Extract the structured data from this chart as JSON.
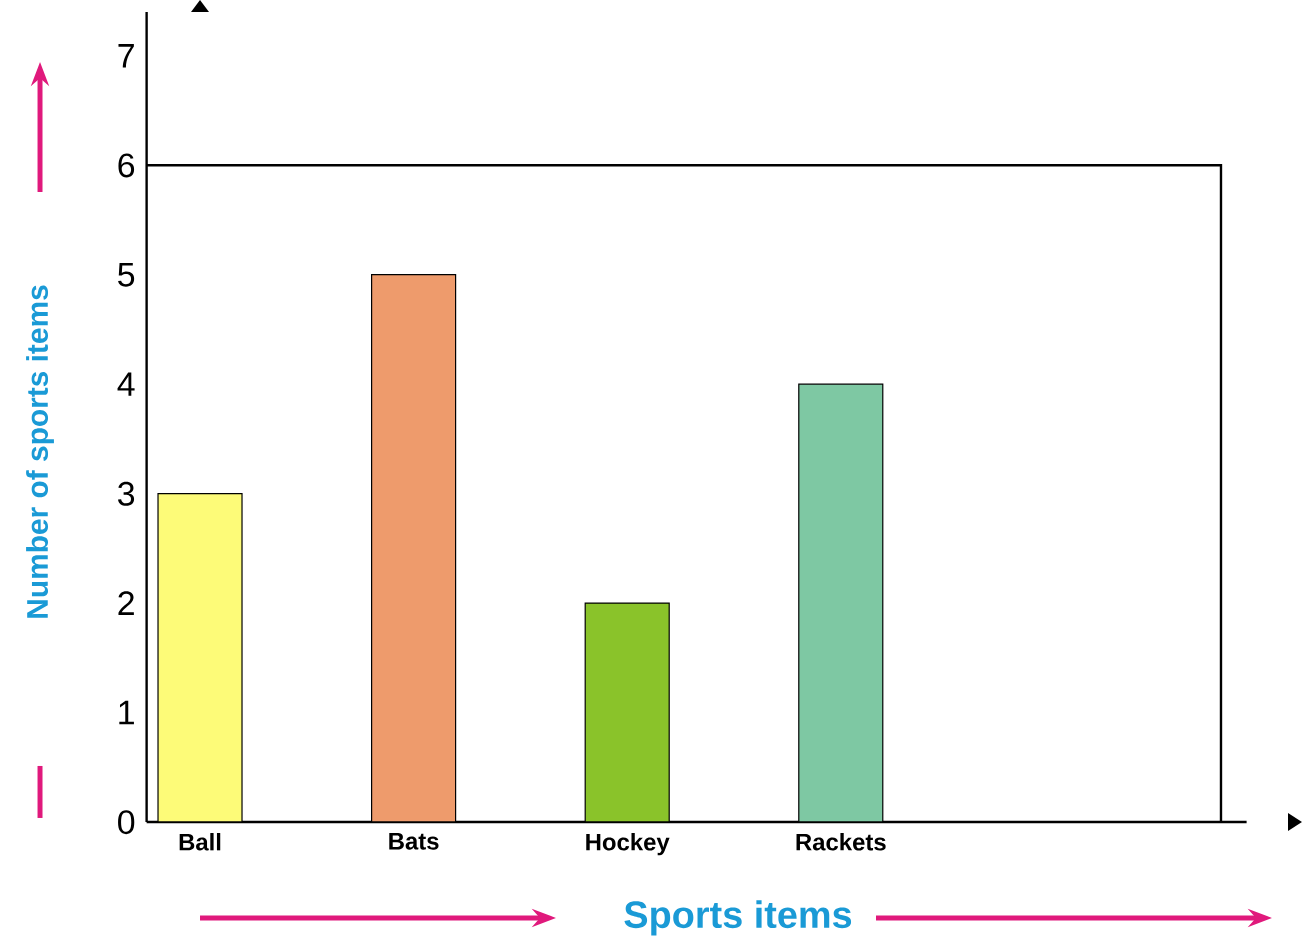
{
  "chart_data": {
    "type": "bar",
    "xlabel": "Sports items",
    "ylabel": "Number of sports items",
    "categories": [
      "Ball",
      "Bats",
      "Hockey",
      "Rackets"
    ],
    "values": [
      3,
      5,
      2,
      4
    ],
    "colors": [
      "#fdfb78",
      "#ee9b6c",
      "#8ac32a",
      "#7ec8a3"
    ],
    "ylim": [
      0,
      7.4
    ],
    "yticks": [
      0,
      1,
      2,
      3,
      4,
      5,
      6,
      7
    ],
    "ref_lines": [
      {
        "axis": "y",
        "value": 6,
        "color": "#000000"
      }
    ],
    "grid": false
  }
}
